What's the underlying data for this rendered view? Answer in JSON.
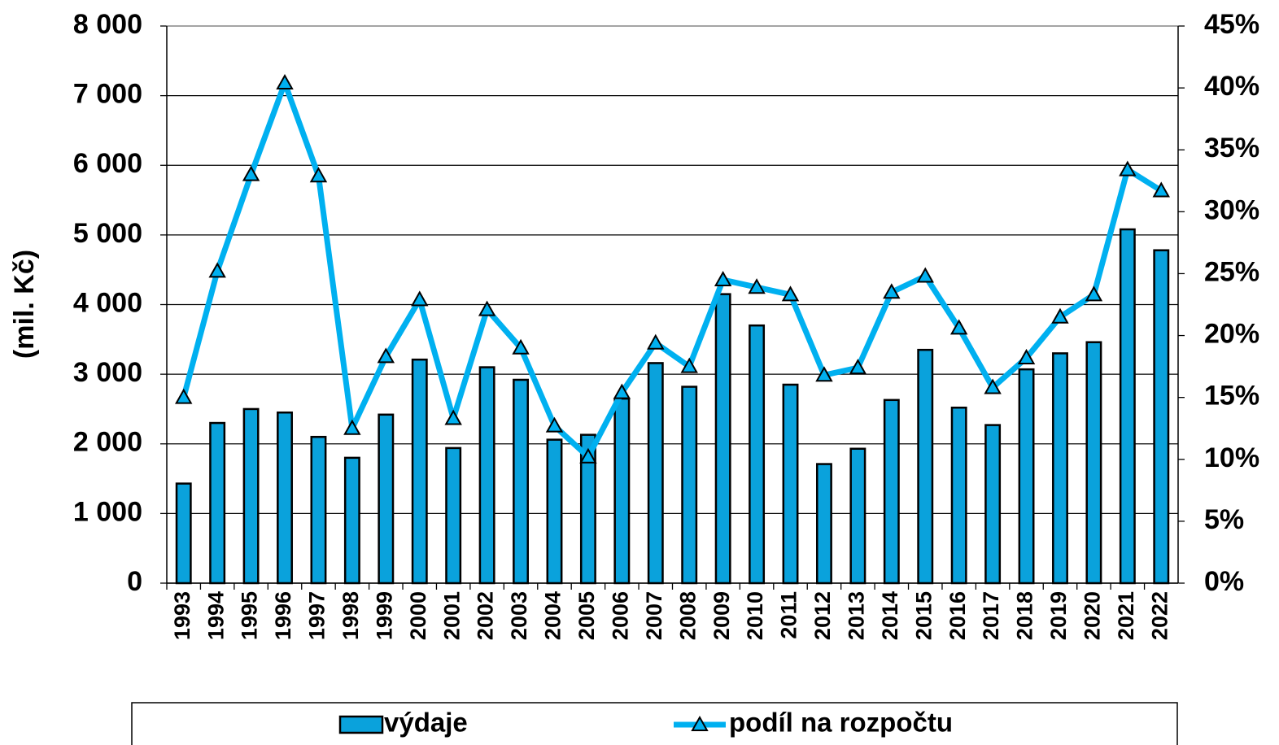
{
  "chart_data": {
    "type": "bar_line",
    "y_axis_label": "(mil. Kč)",
    "categories": [
      "1993",
      "1994",
      "1995",
      "1996",
      "1997",
      "1998",
      "1999",
      "2000",
      "2001",
      "2002",
      "2003",
      "2004",
      "2005",
      "2006",
      "2007",
      "2008",
      "2009",
      "2010",
      "2011",
      "2012",
      "2013",
      "2014",
      "2015",
      "2016",
      "2017",
      "2018",
      "2019",
      "2020",
      "2021",
      "2022"
    ],
    "series": [
      {
        "name": "výdaje",
        "type": "bar",
        "color": "#0aa2dc",
        "values": [
          1430,
          2300,
          2500,
          2450,
          2100,
          1800,
          2420,
          3210,
          1940,
          3100,
          2920,
          2060,
          2130,
          2650,
          3160,
          2820,
          4150,
          3700,
          2850,
          1710,
          1930,
          2630,
          3350,
          2520,
          2270,
          3070,
          3300,
          3460,
          5080,
          4780
        ]
      },
      {
        "name": "podíl na rozpočtu",
        "type": "line",
        "axis": "y2",
        "color": "#00b0f0",
        "values": [
          15.0,
          25.2,
          33.0,
          40.4,
          32.9,
          12.5,
          18.3,
          22.9,
          13.3,
          22.1,
          19.0,
          12.7,
          10.2,
          15.4,
          19.4,
          17.5,
          24.5,
          23.9,
          23.3,
          16.8,
          17.4,
          23.5,
          24.8,
          20.6,
          15.8,
          18.2,
          21.5,
          23.3,
          33.4,
          31.7
        ]
      }
    ],
    "ylim": [
      0,
      8000
    ],
    "yticks": [
      0,
      {
        "value": 1000,
        "label": "1 000"
      },
      {
        "value": 2000,
        "label": "2 000"
      },
      {
        "value": 3000,
        "label": "3 000"
      },
      {
        "value": 4000,
        "label": "4 000"
      },
      {
        "value": 5000,
        "label": "5 000"
      },
      {
        "value": 6000,
        "label": "6 000"
      },
      {
        "value": 7000,
        "label": "7 000"
      },
      {
        "value": 8000,
        "label": "8 000"
      }
    ],
    "y2lim": [
      0,
      45
    ],
    "y2ticks": [
      {
        "value": 0,
        "label": "0%"
      },
      {
        "value": 5,
        "label": "5%"
      },
      {
        "value": 10,
        "label": "10%"
      },
      {
        "value": 15,
        "label": "15%"
      },
      {
        "value": 20,
        "label": "20%"
      },
      {
        "value": 25,
        "label": "25%"
      },
      {
        "value": 30,
        "label": "30%"
      },
      {
        "value": 35,
        "label": "35%"
      },
      {
        "value": 40,
        "label": "40%"
      },
      {
        "value": 45,
        "label": "45%"
      }
    ],
    "grid": true,
    "legend": "bottom"
  }
}
